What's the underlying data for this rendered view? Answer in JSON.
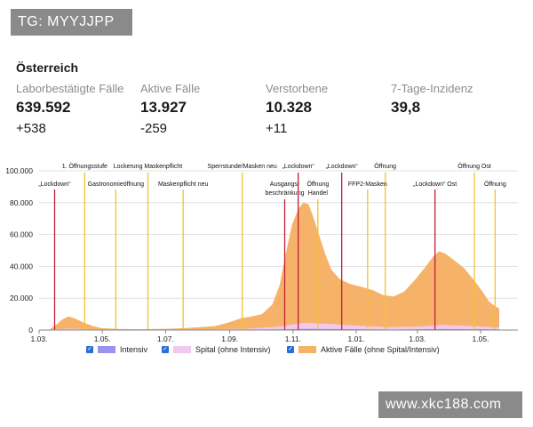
{
  "watermark_top": "TG: MYYJJPP",
  "watermark_bottom": "www.xkc188.com",
  "region": "Österreich",
  "stats": [
    {
      "label": "Laborbestätigte Fälle",
      "value": "639.592",
      "change": "+538"
    },
    {
      "label": "Aktive Fälle",
      "value": "13.927",
      "change": "-259"
    },
    {
      "label": "Verstorbene",
      "value": "10.328",
      "change": "+11"
    },
    {
      "label": "7-Tage-Inzidenz",
      "value": "39,8",
      "change": ""
    }
  ],
  "legend": [
    {
      "label": "Intensiv",
      "color": "#9a93ee"
    },
    {
      "label": "Spital (ohne Intensiv)",
      "color": "#f1c9ee"
    },
    {
      "label": "Aktive Fälle (ohne Spital/Intensiv)",
      "color": "#f7b26a"
    }
  ],
  "chart_data": {
    "type": "area",
    "x_unit": "days since 1.03.2020",
    "xlim": [
      0,
      462
    ],
    "ylim": [
      0,
      100000
    ],
    "yticks": [
      0,
      20000,
      40000,
      60000,
      80000,
      100000
    ],
    "ytick_labels": [
      "0",
      "20.000",
      "40.000",
      "60.000",
      "80.000",
      "100.000"
    ],
    "xticks": [
      {
        "day": 0,
        "label": "1.03."
      },
      {
        "day": 61,
        "label": "1.05."
      },
      {
        "day": 122,
        "label": "1.07."
      },
      {
        "day": 184,
        "label": "1.09."
      },
      {
        "day": 245,
        "label": "1.11."
      },
      {
        "day": 306,
        "label": "1.01."
      },
      {
        "day": 365,
        "label": "1.03."
      },
      {
        "day": 426,
        "label": "1.05."
      }
    ],
    "series": [
      {
        "name": "Aktive Fälle (ohne Spital/Intensiv)",
        "color": "#f7b26a",
        "points": [
          [
            0,
            0
          ],
          [
            10,
            300
          ],
          [
            16,
            3000
          ],
          [
            22,
            6500
          ],
          [
            28,
            8500
          ],
          [
            34,
            7500
          ],
          [
            42,
            5000
          ],
          [
            52,
            2500
          ],
          [
            60,
            1200
          ],
          [
            75,
            700
          ],
          [
            95,
            500
          ],
          [
            122,
            800
          ],
          [
            140,
            1200
          ],
          [
            155,
            1800
          ],
          [
            170,
            2500
          ],
          [
            184,
            5000
          ],
          [
            195,
            7500
          ],
          [
            205,
            8500
          ],
          [
            215,
            10000
          ],
          [
            225,
            16000
          ],
          [
            232,
            28000
          ],
          [
            238,
            48000
          ],
          [
            244,
            66000
          ],
          [
            250,
            76000
          ],
          [
            255,
            80000
          ],
          [
            260,
            79000
          ],
          [
            264,
            72000
          ],
          [
            270,
            60000
          ],
          [
            276,
            48000
          ],
          [
            282,
            38000
          ],
          [
            290,
            32000
          ],
          [
            300,
            29000
          ],
          [
            312,
            27000
          ],
          [
            322,
            25000
          ],
          [
            332,
            22000
          ],
          [
            342,
            21000
          ],
          [
            352,
            24000
          ],
          [
            362,
            31000
          ],
          [
            372,
            39000
          ],
          [
            380,
            46000
          ],
          [
            386,
            49500
          ],
          [
            392,
            48000
          ],
          [
            400,
            44000
          ],
          [
            410,
            39000
          ],
          [
            420,
            31000
          ],
          [
            428,
            24000
          ],
          [
            434,
            18000
          ],
          [
            440,
            15000
          ],
          [
            444,
            13500
          ],
          [
            444,
            0
          ]
        ]
      },
      {
        "name": "Spital (ohne Intensiv)",
        "color": "#f1c9ee",
        "points": [
          [
            0,
            0
          ],
          [
            20,
            600
          ],
          [
            30,
            900
          ],
          [
            45,
            500
          ],
          [
            60,
            200
          ],
          [
            150,
            200
          ],
          [
            200,
            800
          ],
          [
            230,
            2000
          ],
          [
            255,
            4500
          ],
          [
            275,
            4000
          ],
          [
            305,
            2800
          ],
          [
            335,
            1800
          ],
          [
            365,
            2200
          ],
          [
            390,
            3200
          ],
          [
            420,
            2400
          ],
          [
            444,
            1600
          ],
          [
            444,
            0
          ]
        ]
      },
      {
        "name": "Intensiv",
        "color": "#9a93ee",
        "points": [
          [
            0,
            0
          ],
          [
            20,
            150
          ],
          [
            30,
            250
          ],
          [
            50,
            100
          ],
          [
            150,
            50
          ],
          [
            230,
            400
          ],
          [
            255,
            700
          ],
          [
            290,
            600
          ],
          [
            340,
            300
          ],
          [
            390,
            600
          ],
          [
            444,
            400
          ],
          [
            444,
            0
          ]
        ]
      }
    ],
    "events": [
      {
        "day": 15,
        "label": "„Lockdown“",
        "color": "#c0203a",
        "row": 1
      },
      {
        "day": 44,
        "label": "1. Öffnungsstufe",
        "color": "#f2c233",
        "row": 0
      },
      {
        "day": 74,
        "label": "Gastronomieöffnung",
        "color": "#f2c233",
        "row": 1
      },
      {
        "day": 105,
        "label": "Lockerung Maskenpflicht",
        "color": "#f2c233",
        "row": 0
      },
      {
        "day": 139,
        "label": "Maskenpflicht neu",
        "color": "#f2c233",
        "row": 2
      },
      {
        "day": 196,
        "label": "Sperrstunde/Masken neu",
        "color": "#f2c233",
        "row": 0
      },
      {
        "day": 237,
        "label": "Ausgangs-",
        "label2": "beschränkung",
        "color": "#c0203a",
        "row": 1
      },
      {
        "day": 250,
        "label": "„Lockdown“",
        "color": "#c0203a",
        "row": 0
      },
      {
        "day": 269,
        "label": "Öffnung",
        "label2": "Handel",
        "color": "#f2c233",
        "row": 1
      },
      {
        "day": 292,
        "label": "„Lockdown“",
        "color": "#c0203a",
        "row": 0
      },
      {
        "day": 317,
        "label": "FFP2-Masken",
        "color": "#f2c233",
        "row": 2
      },
      {
        "day": 334,
        "label": "Öffnung",
        "color": "#f2c233",
        "row": 0
      },
      {
        "day": 382,
        "label": "„Lockdown“ Ost",
        "color": "#c0203a",
        "row": 2
      },
      {
        "day": 420,
        "label": "Öffnung Ost",
        "color": "#f2c233",
        "row": 0
      },
      {
        "day": 440,
        "label": "Öffnung",
        "color": "#f2c233",
        "row": 2
      }
    ]
  }
}
